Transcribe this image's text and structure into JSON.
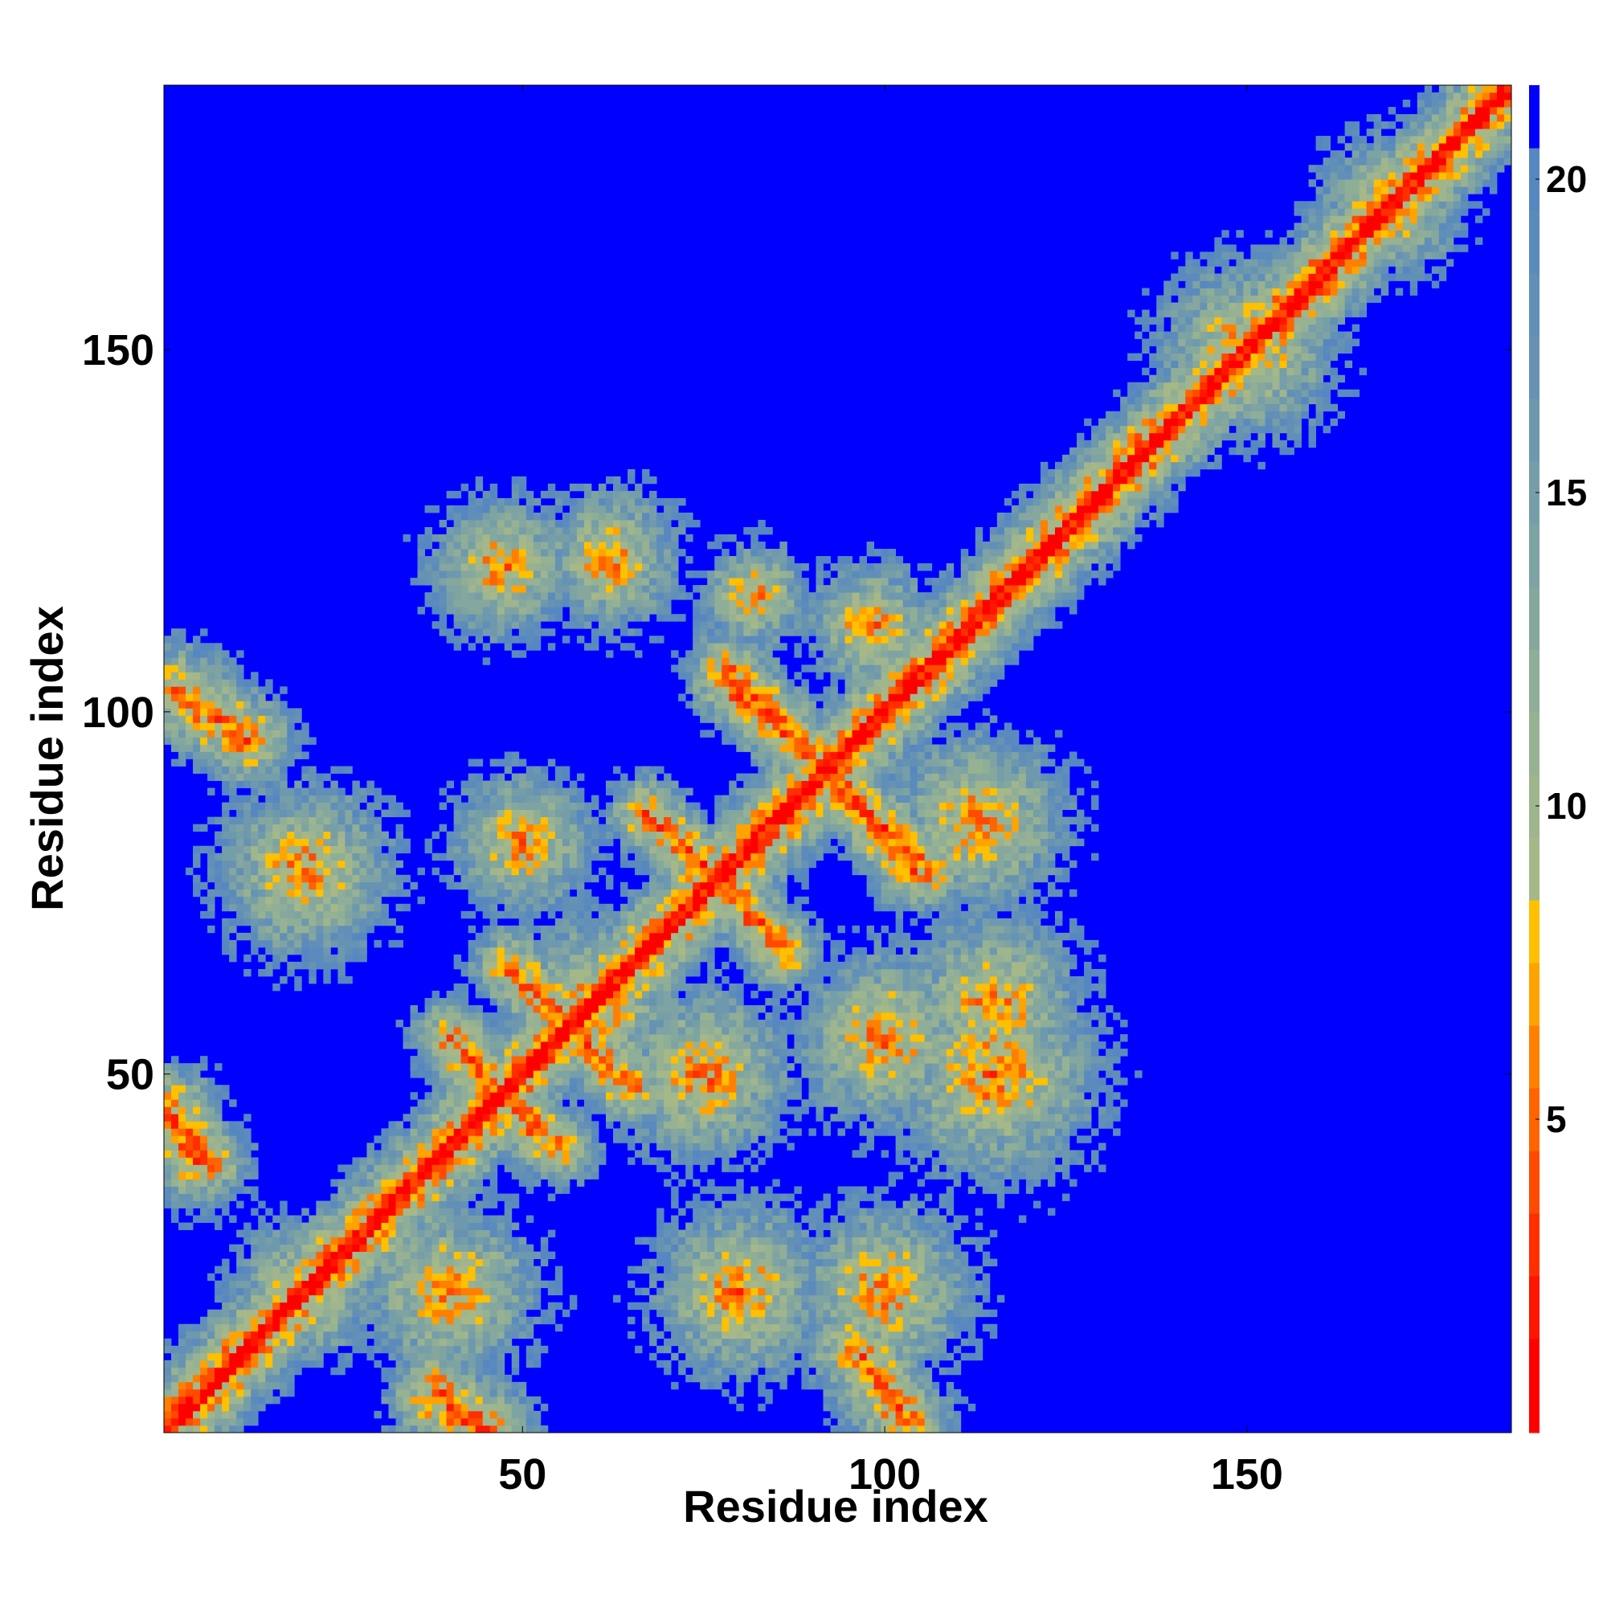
{
  "chart_data": {
    "type": "heatmap",
    "title": "",
    "xlabel": "Residue index",
    "ylabel": "Residue index",
    "n_residues": 186,
    "xlim": [
      1,
      186
    ],
    "ylim": [
      1,
      186
    ],
    "x_ticks": [
      50,
      100,
      150
    ],
    "y_ticks": [
      50,
      100,
      150
    ],
    "colorbar": {
      "ticks": [
        5,
        10,
        15,
        20
      ],
      "range": [
        0,
        21.5
      ],
      "levels": [
        {
          "max": 1.5,
          "color": "#ff0000"
        },
        {
          "max": 2.5,
          "color": "#ff1500"
        },
        {
          "max": 3.5,
          "color": "#ff2f00"
        },
        {
          "max": 4.5,
          "color": "#ff4a00"
        },
        {
          "max": 5.5,
          "color": "#ff6400"
        },
        {
          "max": 6.5,
          "color": "#ff8000"
        },
        {
          "max": 7.5,
          "color": "#ffa300"
        },
        {
          "max": 8.5,
          "color": "#ffc000"
        },
        {
          "max": 9.5,
          "color": "#a6b887"
        },
        {
          "max": 10.5,
          "color": "#9fb58e"
        },
        {
          "max": 11.5,
          "color": "#96b292"
        },
        {
          "max": 12.5,
          "color": "#8fae98"
        },
        {
          "max": 13.5,
          "color": "#85a79e"
        },
        {
          "max": 14.5,
          "color": "#7ea3a3"
        },
        {
          "max": 15.5,
          "color": "#769ea8"
        },
        {
          "max": 16.5,
          "color": "#6e98ad"
        },
        {
          "max": 17.5,
          "color": "#6793b3"
        },
        {
          "max": 18.5,
          "color": "#618fb8"
        },
        {
          "max": 19.5,
          "color": "#5b8bbd"
        },
        {
          "max": 20.5,
          "color": "#5787c0"
        },
        {
          "max": 999,
          "color": "#0000ff"
        }
      ]
    },
    "diagonal_halfwidth": 12,
    "contacts": [
      {
        "x1": 1,
        "y1": 45,
        "x2": 7,
        "y2": 38,
        "w": 2.5
      },
      {
        "x1": 2,
        "y1": 103,
        "x2": 12,
        "y2": 96,
        "w": 2.5
      },
      {
        "x1": 38,
        "y1": 5,
        "x2": 45,
        "y2": 1,
        "w": 2
      },
      {
        "x1": 40,
        "y1": 55,
        "x2": 52,
        "y2": 42,
        "w": 2.5
      },
      {
        "x1": 48,
        "y1": 65,
        "x2": 65,
        "y2": 48,
        "w": 2.5
      },
      {
        "x1": 67,
        "y1": 86,
        "x2": 80,
        "y2": 74,
        "w": 2.5
      },
      {
        "x1": 74,
        "y1": 80,
        "x2": 86,
        "y2": 67,
        "w": 2.5
      },
      {
        "x1": 78,
        "y1": 106,
        "x2": 92,
        "y2": 92,
        "w": 2.5
      },
      {
        "x1": 92,
        "y1": 92,
        "x2": 104,
        "y2": 78,
        "w": 2.5
      },
      {
        "x1": 96,
        "y1": 12,
        "x2": 103,
        "y2": 2,
        "w": 2
      }
    ],
    "blobs": [
      {
        "x": 47,
        "y": 120,
        "r": 8,
        "w": 2.5
      },
      {
        "x": 62,
        "y": 121,
        "r": 8,
        "w": 2.5
      },
      {
        "x": 82,
        "y": 116,
        "r": 6,
        "w": 2
      },
      {
        "x": 98,
        "y": 112,
        "r": 7,
        "w": 2
      },
      {
        "x": 20,
        "y": 78,
        "r": 10,
        "w": 2
      },
      {
        "x": 50,
        "y": 82,
        "r": 8,
        "w": 2
      },
      {
        "x": 115,
        "y": 60,
        "r": 10,
        "w": 2
      },
      {
        "x": 113,
        "y": 85,
        "r": 10,
        "w": 2
      },
      {
        "x": 115,
        "y": 50,
        "r": 12,
        "w": 2
      },
      {
        "x": 80,
        "y": 20,
        "r": 10,
        "w": 2
      },
      {
        "x": 100,
        "y": 20,
        "r": 10,
        "w": 2
      },
      {
        "x": 75,
        "y": 50,
        "r": 10,
        "w": 2
      },
      {
        "x": 100,
        "y": 55,
        "r": 10,
        "w": 2
      },
      {
        "x": 40,
        "y": 20,
        "r": 10,
        "w": 2
      },
      {
        "x": 150,
        "y": 150,
        "r": 10,
        "w": 2.2
      },
      {
        "x": 170,
        "y": 170,
        "r": 8,
        "w": 2.2
      },
      {
        "x": 60,
        "y": 60,
        "r": 10,
        "w": 2
      },
      {
        "x": 20,
        "y": 20,
        "r": 8,
        "w": 2
      }
    ],
    "blue_region": {
      "x_min": 140,
      "y_max": 120
    }
  }
}
